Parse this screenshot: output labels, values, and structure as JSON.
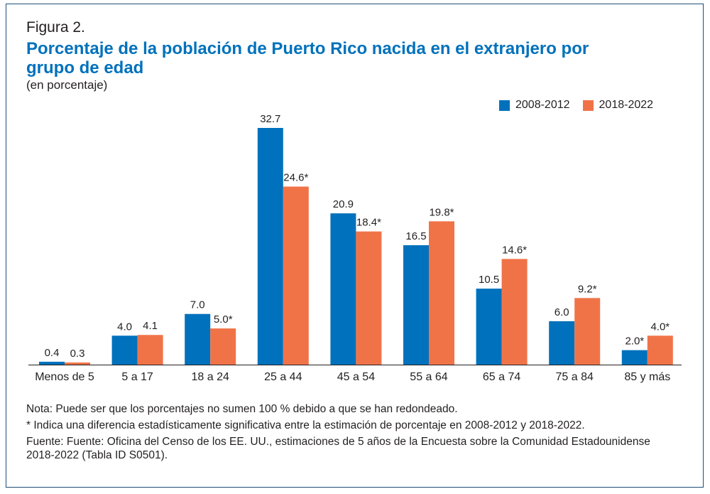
{
  "figure_label": "Figura 2.",
  "title": "Porcentaje de la población de Puerto Rico nacida en el extranjero por grupo de edad",
  "subtitle": "(en porcentaje)",
  "colors": {
    "series1": "#0071bc",
    "series2": "#f07348",
    "border": "#1f4e79"
  },
  "chart_data": {
    "type": "bar",
    "categories": [
      "Menos de 5",
      "5 a 17",
      "18 a 24",
      "25 a 44",
      "45 a 54",
      "55 a 64",
      "65 a 74",
      "75 a 84",
      "85 y más"
    ],
    "series": [
      {
        "name": "2008-2012",
        "values": [
          0.4,
          4.0,
          7.0,
          32.7,
          20.9,
          16.5,
          10.5,
          6.0,
          2.0
        ],
        "labels": [
          "0.4",
          "4.0",
          "7.0",
          "32.7",
          "20.9",
          "16.5",
          "10.5",
          "6.0",
          "2.0*"
        ]
      },
      {
        "name": "2018-2022",
        "values": [
          0.3,
          4.1,
          5.0,
          24.6,
          18.4,
          19.8,
          14.6,
          9.2,
          4.0
        ],
        "labels": [
          "0.3",
          "4.1",
          "5.0*",
          "24.6*",
          "18.4*",
          "19.8*",
          "14.6*",
          "9.2*",
          "4.0*"
        ]
      }
    ],
    "ylim": [
      0,
      32.7
    ],
    "legend_position": "top-right",
    "grid": false
  },
  "notes": {
    "note": "Nota: Puede ser que los porcentajes no sumen 100 % debido a que se han redondeado.",
    "significance": "* Indica una diferencia estadísticamente significativa entre la estimación de porcentaje en 2008-2012 y 2018-2022.",
    "source": "Fuente: Fuente: Oficina del Censo de los EE. UU., estimaciones de 5 años de la Encuesta sobre la Comunidad Estadounidense 2018-2022 (Tabla ID S0501)."
  }
}
